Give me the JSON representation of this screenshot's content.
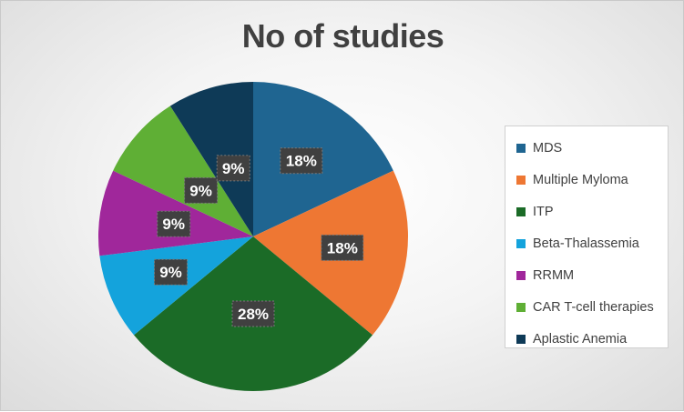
{
  "chart_data": {
    "type": "pie",
    "title": "No of studies",
    "categories": [
      "MDS",
      "Multiple Myloma",
      "ITP",
      "Beta-Thalassemia",
      "RRMM",
      "CAR T-cell therapies",
      "Aplastic Anemia"
    ],
    "values": [
      18,
      18,
      28,
      9,
      9,
      9,
      9
    ],
    "data_labels": [
      "18%",
      "18%",
      "28%",
      "9%",
      "9%",
      "9%",
      "9%"
    ],
    "colors": [
      "#1F6591",
      "#EE7733",
      "#1B6B27",
      "#14A3DC",
      "#A0279B",
      "#5FAF35",
      "#0E3A57"
    ],
    "legend": "right"
  }
}
